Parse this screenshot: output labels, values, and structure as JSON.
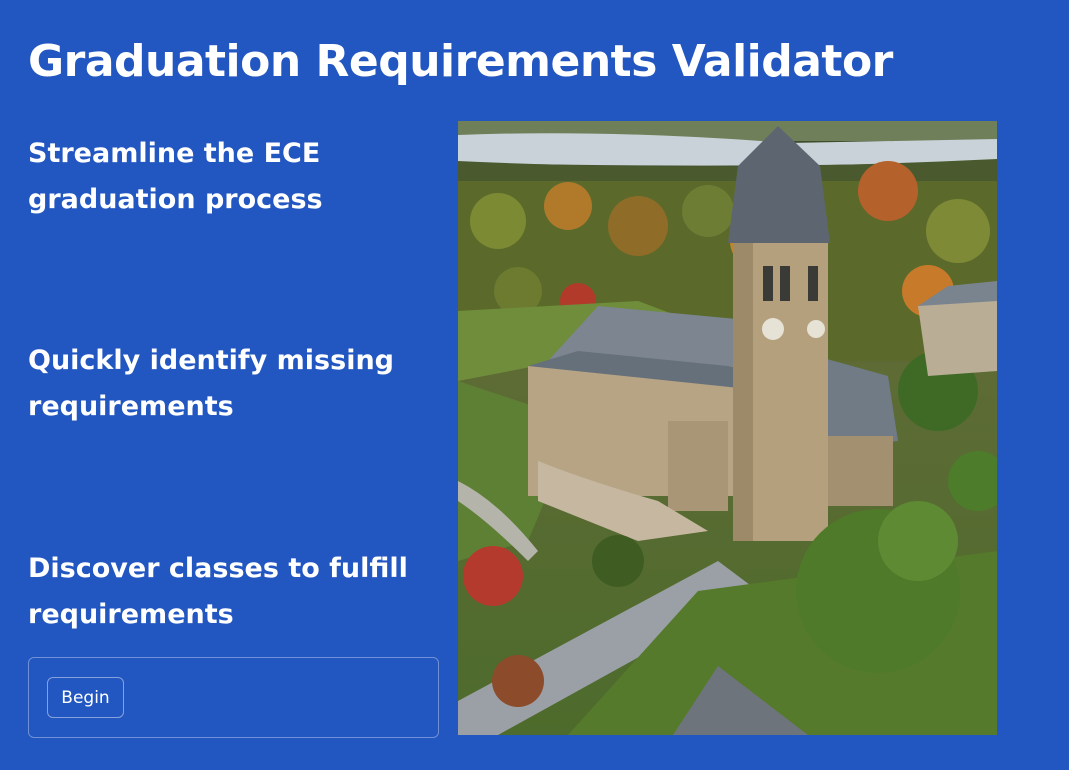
{
  "header": {
    "title": "Graduation Requirements Validator"
  },
  "features": [
    {
      "text": "Streamline the ECE graduation process"
    },
    {
      "text": "Quickly identify missing requirements"
    },
    {
      "text": "Discover classes to fulfill requirements"
    }
  ],
  "cta": {
    "label": "Begin"
  },
  "image": {
    "icon": "campus-clock-tower-photo"
  },
  "colors": {
    "background": "#2256c0",
    "text": "#ffffff"
  }
}
